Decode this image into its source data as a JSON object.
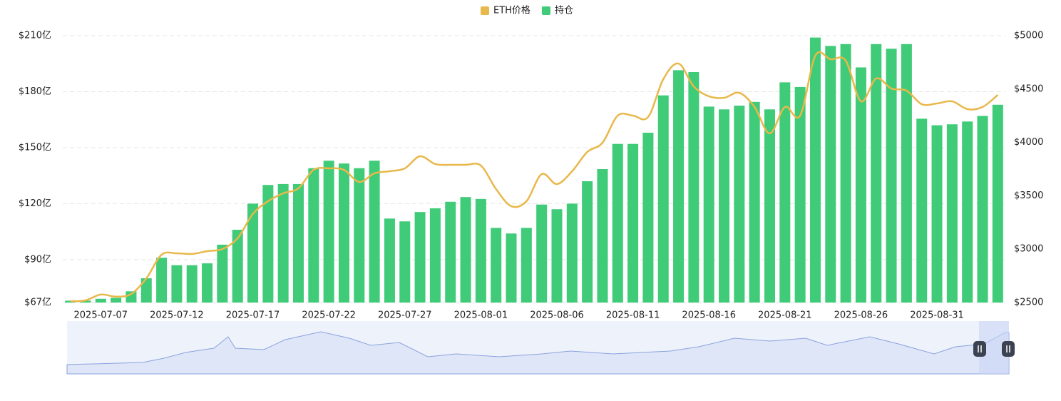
{
  "chart_data": {
    "type": "bar_line",
    "legend_position": "top",
    "grid": true,
    "categories": [
      null,
      null,
      "2025-07-07",
      null,
      null,
      null,
      null,
      "2025-07-12",
      null,
      null,
      null,
      null,
      "2025-07-17",
      null,
      null,
      null,
      null,
      "2025-07-22",
      null,
      null,
      null,
      null,
      "2025-07-27",
      null,
      null,
      null,
      null,
      "2025-08-01",
      null,
      null,
      null,
      null,
      "2025-08-06",
      null,
      null,
      null,
      null,
      "2025-08-11",
      null,
      null,
      null,
      null,
      "2025-08-16",
      null,
      null,
      null,
      null,
      "2025-08-21",
      null,
      null,
      null,
      null,
      "2025-08-26",
      null,
      null,
      null,
      null,
      "2025-08-31",
      null,
      null,
      null,
      null
    ],
    "series": [
      {
        "name": "ETH价格",
        "type": "line",
        "axis": "y2",
        "color": "#e8b84a",
        "values": [
          2513,
          2520,
          2575,
          2555,
          2580,
          2727,
          2948,
          2961,
          2955,
          2981,
          3001,
          3102,
          3329,
          3449,
          3523,
          3570,
          3743,
          3757,
          3743,
          3630,
          3710,
          3730,
          3757,
          3870,
          3797,
          3790,
          3790,
          3783,
          3563,
          3403,
          3449,
          3703,
          3610,
          3730,
          3911,
          3997,
          4251,
          4251,
          4238,
          4592,
          4739,
          4525,
          4432,
          4418,
          4465,
          4332,
          4084,
          4332,
          4251,
          4813,
          4779,
          4766,
          4385,
          4599,
          4505,
          4485,
          4358,
          4365,
          4385,
          4312,
          4332,
          4445
        ]
      },
      {
        "name": "持仓",
        "type": "bar",
        "color": "#3fcb78",
        "values": [
          68,
          68,
          69,
          69.5,
          73,
          80,
          91,
          87,
          87,
          88,
          98,
          106,
          120,
          130,
          130.5,
          130.5,
          139,
          143,
          141.5,
          139,
          143,
          112,
          110.5,
          115.5,
          117.5,
          121,
          123.5,
          122.5,
          107,
          104,
          107,
          119.5,
          117,
          120,
          132,
          138.5,
          152,
          152,
          158,
          178,
          191.5,
          190.5,
          172,
          170.5,
          172.5,
          174.5,
          170.5,
          185,
          182.5,
          209,
          204.5,
          205.5,
          193,
          205.5,
          203,
          205.5,
          165.5,
          162,
          162.5,
          164,
          167,
          173
        ]
      }
    ],
    "ylim": [
      67,
      210
    ],
    "yticks": [
      {
        "value": 67,
        "label": "$67亿"
      },
      {
        "value": 90,
        "label": "$90亿"
      },
      {
        "value": 120,
        "label": "$120亿"
      },
      {
        "value": 150,
        "label": "$150亿"
      },
      {
        "value": 180,
        "label": "$180亿"
      },
      {
        "value": 210,
        "label": "$210亿"
      }
    ],
    "y2lim": [
      2500,
      5000
    ],
    "y2ticks": [
      {
        "value": 2500,
        "label": "$2500"
      },
      {
        "value": 3000,
        "label": "$3000"
      },
      {
        "value": 3500,
        "label": "$3500"
      },
      {
        "value": 4000,
        "label": "$4000"
      },
      {
        "value": 4500,
        "label": "$4500"
      },
      {
        "value": 5000,
        "label": "$5000"
      }
    ]
  }
}
